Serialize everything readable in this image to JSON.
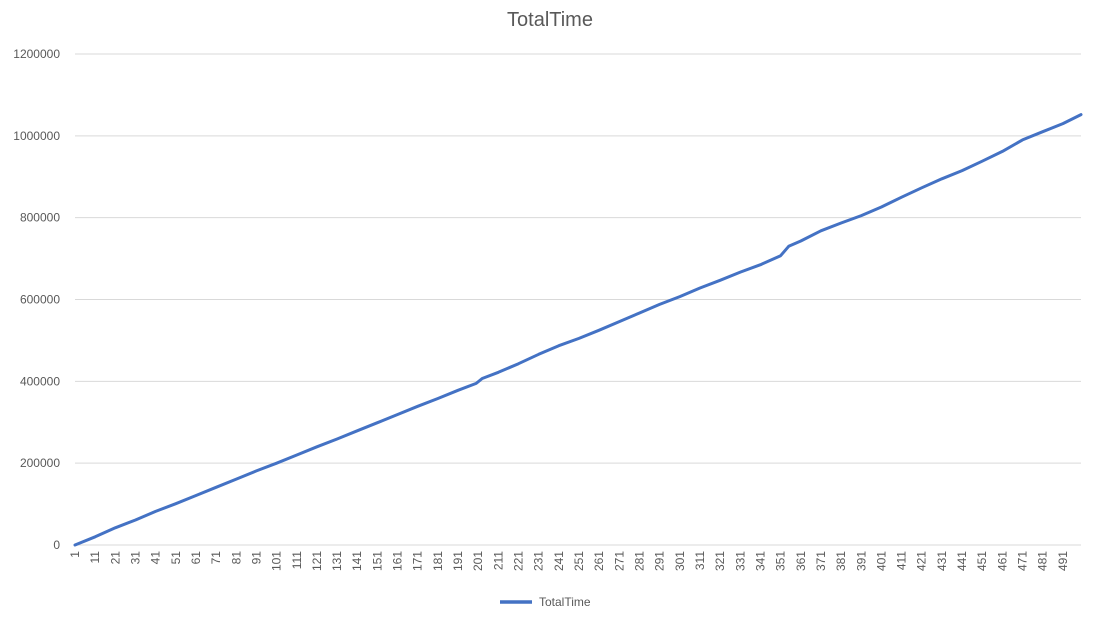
{
  "chart_data": {
    "type": "line",
    "title": "TotalTime",
    "xlabel": "",
    "ylabel": "",
    "x_range": [
      1,
      500
    ],
    "x_tick_start": 1,
    "x_tick_step": 10,
    "x_tick_count": 50,
    "ylim": [
      0,
      1200000
    ],
    "y_ticks": [
      0,
      200000,
      400000,
      600000,
      800000,
      1000000,
      1200000
    ],
    "grid": true,
    "legend_position": "bottom",
    "series": [
      {
        "name": "TotalTime",
        "color": "#4472C4",
        "x": [
          1,
          11,
          21,
          31,
          41,
          51,
          61,
          71,
          81,
          91,
          101,
          111,
          121,
          131,
          141,
          151,
          161,
          171,
          181,
          191,
          200,
          203,
          211,
          221,
          231,
          241,
          251,
          261,
          271,
          281,
          291,
          301,
          311,
          321,
          331,
          341,
          351,
          355,
          361,
          371,
          381,
          391,
          401,
          411,
          421,
          431,
          441,
          451,
          461,
          471,
          481,
          491,
          500
        ],
        "values": [
          0,
          20000,
          42000,
          61000,
          82000,
          101000,
          121000,
          141000,
          161000,
          181000,
          200000,
          220000,
          240000,
          259000,
          279000,
          299000,
          319000,
          339000,
          358000,
          378000,
          395000,
          407000,
          422000,
          443000,
          466000,
          487000,
          505000,
          525000,
          546000,
          567000,
          588000,
          607000,
          628000,
          647000,
          667000,
          685000,
          707000,
          730000,
          743000,
          768000,
          787000,
          805000,
          826000,
          850000,
          873000,
          895000,
          915000,
          938000,
          962000,
          990000,
          1010000,
          1030000,
          1052000
        ]
      }
    ]
  }
}
